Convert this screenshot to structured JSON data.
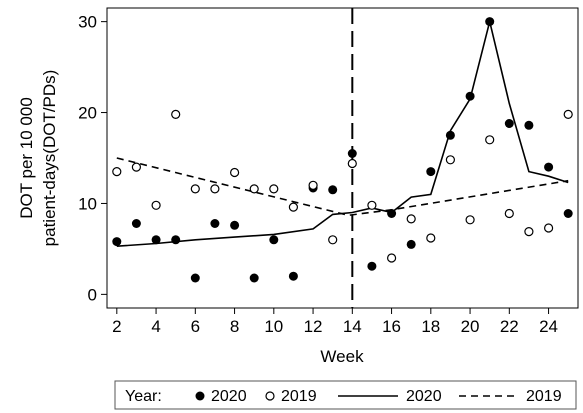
{
  "chart_data": {
    "type": "scatter",
    "title": "",
    "xlabel": "Week",
    "ylabel_lines": [
      "DOT per 10 000",
      "patient-days(DOT/PDs)"
    ],
    "xlim": [
      1.5,
      25.5
    ],
    "ylim": [
      -1.5,
      31.5
    ],
    "x_ticks": [
      2,
      4,
      6,
      8,
      10,
      12,
      14,
      16,
      18,
      20,
      22,
      24
    ],
    "y_ticks": [
      0,
      10,
      20,
      30
    ],
    "reference_line_x": 14,
    "grid": false,
    "legend_placement": "bottom",
    "legend": {
      "label": "Year:",
      "entries": [
        {
          "marker": "filled-circle",
          "text": "2020"
        },
        {
          "marker": "open-circle",
          "text": "2019"
        },
        {
          "marker": "solid-line",
          "text": "2020"
        },
        {
          "marker": "dashed-line",
          "text": "2019"
        }
      ]
    },
    "series": [
      {
        "name": "2020",
        "kind": "points",
        "style": "filled",
        "points": [
          [
            2,
            5.8
          ],
          [
            3,
            7.8
          ],
          [
            4,
            6.0
          ],
          [
            5,
            6.0
          ],
          [
            6,
            1.8
          ],
          [
            7,
            7.8
          ],
          [
            8,
            7.6
          ],
          [
            9,
            1.8
          ],
          [
            10,
            6.0
          ],
          [
            11,
            2.0
          ],
          [
            12,
            11.7
          ],
          [
            13,
            11.5
          ],
          [
            14,
            15.5
          ],
          [
            15,
            3.1
          ],
          [
            16,
            8.9
          ],
          [
            17,
            5.5
          ],
          [
            18,
            13.5
          ],
          [
            19,
            17.5
          ],
          [
            20,
            21.8
          ],
          [
            21,
            30.0
          ],
          [
            22,
            18.8
          ],
          [
            23,
            18.6
          ],
          [
            24,
            14.0
          ],
          [
            25,
            8.9
          ]
        ]
      },
      {
        "name": "2019",
        "kind": "points",
        "style": "open",
        "points": [
          [
            2,
            13.5
          ],
          [
            3,
            14.0
          ],
          [
            4,
            9.8
          ],
          [
            5,
            19.8
          ],
          [
            6,
            11.6
          ],
          [
            7,
            11.6
          ],
          [
            8,
            13.4
          ],
          [
            9,
            11.6
          ],
          [
            10,
            11.6
          ],
          [
            11,
            9.6
          ],
          [
            12,
            12.0
          ],
          [
            13,
            6.0
          ],
          [
            14,
            14.4
          ],
          [
            15,
            9.8
          ],
          [
            16,
            4.0
          ],
          [
            17,
            8.3
          ],
          [
            18,
            6.2
          ],
          [
            19,
            14.8
          ],
          [
            20,
            8.2
          ],
          [
            21,
            17.0
          ],
          [
            22,
            8.9
          ],
          [
            23,
            6.9
          ],
          [
            24,
            7.3
          ],
          [
            25,
            19.8
          ]
        ]
      },
      {
        "name": "2020",
        "kind": "line",
        "style": "solid",
        "points": [
          [
            2,
            5.3
          ],
          [
            4,
            5.6
          ],
          [
            6,
            6.0
          ],
          [
            8,
            6.3
          ],
          [
            10,
            6.6
          ],
          [
            12,
            7.2
          ],
          [
            13,
            8.8
          ],
          [
            14,
            9.0
          ],
          [
            15,
            9.5
          ],
          [
            16,
            9.0
          ],
          [
            17,
            10.7
          ],
          [
            18,
            11.0
          ],
          [
            19,
            18.0
          ],
          [
            20,
            21.5
          ],
          [
            21,
            30.0
          ],
          [
            22,
            21.0
          ],
          [
            23,
            13.5
          ],
          [
            24,
            13.0
          ],
          [
            25,
            12.3
          ]
        ]
      },
      {
        "name": "2019",
        "kind": "line",
        "style": "dashed",
        "points": [
          [
            2,
            15.0
          ],
          [
            13.8,
            8.7
          ],
          [
            16,
            9.3
          ],
          [
            25,
            12.5
          ]
        ]
      }
    ]
  }
}
